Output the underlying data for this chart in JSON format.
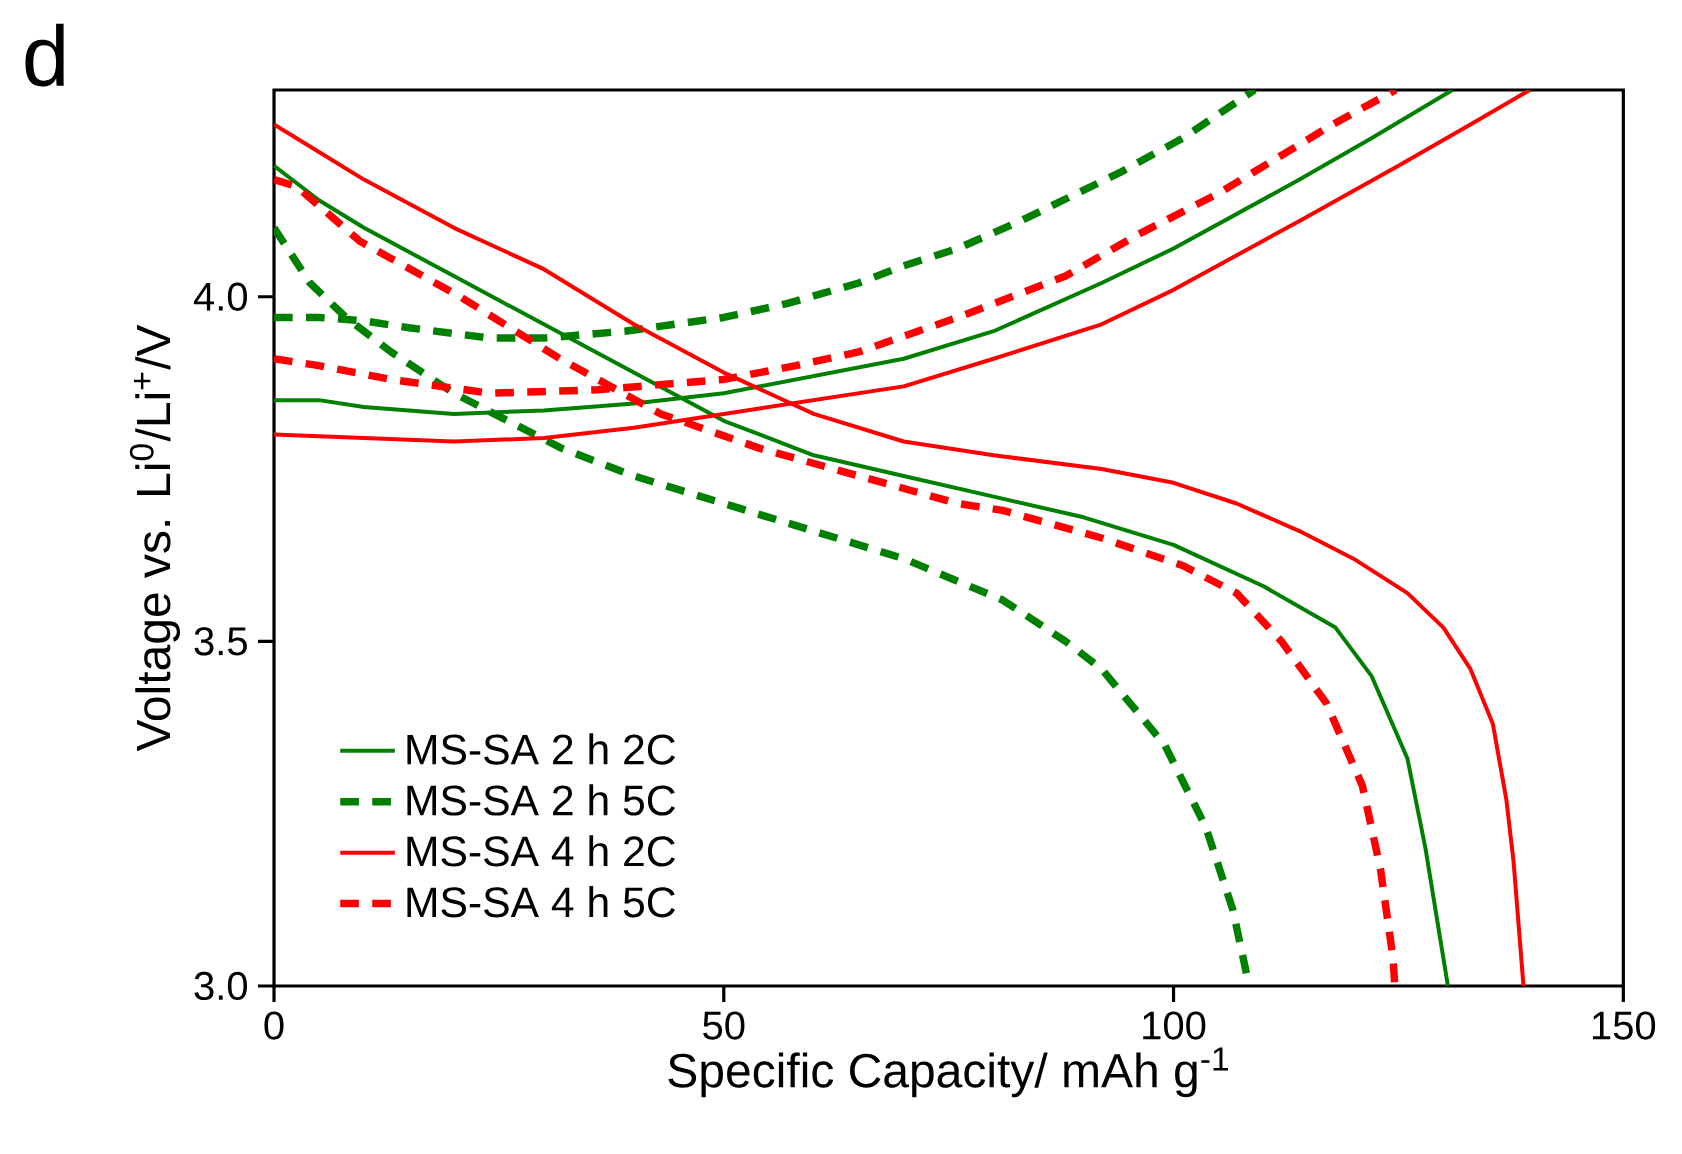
{
  "chart_data": {
    "type": "line",
    "title": "d",
    "xlabel": "Specific Capacity/ mAh g$^{-1}$",
    "ylabel": "Voltage vs. Li$^{0}$/Li$^{+}$/V",
    "xlim": [
      0,
      150
    ],
    "ylim": [
      3.0,
      4.3
    ],
    "xticks": [
      0,
      50,
      100,
      150
    ],
    "yticks": [
      {
        "value": 3.0,
        "label": "3.0"
      },
      {
        "value": 3.5,
        "label": "3.5"
      },
      {
        "value": 4.0,
        "label": "4.0"
      }
    ],
    "legend": "bottom left",
    "marker": "none",
    "grid": false,
    "series": [
      {
        "name": "MS-SA 2 h 2C",
        "color": "#008000",
        "line_style": "solid",
        "x": [
          0,
          5,
          10,
          20,
          30,
          40,
          50,
          60,
          70,
          80,
          90,
          100,
          110,
          118,
          122,
          126,
          128,
          130.5
        ],
        "values": [
          4.19,
          4.14,
          4.1,
          4.03,
          3.96,
          3.89,
          3.82,
          3.77,
          3.74,
          3.71,
          3.68,
          3.64,
          3.58,
          3.52,
          3.45,
          3.33,
          3.2,
          3.0
        ]
      },
      {
        "color": "#008000",
        "line_style": "solid",
        "x": [
          0,
          5,
          10,
          20,
          30,
          40,
          50,
          60,
          70,
          80,
          92,
          100,
          114,
          122,
          131
        ],
        "values": [
          3.85,
          3.85,
          3.84,
          3.83,
          3.835,
          3.845,
          3.86,
          3.885,
          3.91,
          3.95,
          4.02,
          4.07,
          4.17,
          4.23,
          4.3
        ]
      },
      {
        "name": "MS-SA 2 h 5C",
        "color": "#008000",
        "line_style": "dashed",
        "x": [
          0,
          2,
          4,
          8,
          13,
          20,
          32,
          40,
          50,
          60,
          70,
          81,
          88,
          92,
          99,
          103.6,
          106.6,
          108.4
        ],
        "values": [
          4.1,
          4.06,
          4.02,
          3.97,
          3.92,
          3.86,
          3.78,
          3.74,
          3.7,
          3.66,
          3.62,
          3.56,
          3.5,
          3.46,
          3.35,
          3.23,
          3.11,
          3.0
        ]
      },
      {
        "color": "#008000",
        "line_style": "dashed",
        "x": [
          0,
          5,
          10,
          15,
          24,
          30,
          39,
          50,
          57,
          65,
          70,
          76,
          83,
          94,
          101,
          109
        ],
        "values": [
          3.97,
          3.97,
          3.965,
          3.955,
          3.94,
          3.94,
          3.95,
          3.97,
          3.99,
          4.02,
          4.045,
          4.07,
          4.11,
          4.18,
          4.23,
          4.3
        ]
      },
      {
        "name": "MS-SA 4 h 2C",
        "color": "#ff0000",
        "line_style": "solid",
        "x": [
          0,
          5,
          10,
          20,
          30,
          40,
          50,
          60,
          70,
          80,
          92,
          100,
          107,
          114,
          120,
          126,
          130,
          133,
          135.5,
          137,
          137.8,
          138.9
        ],
        "values": [
          4.25,
          4.21,
          4.17,
          4.1,
          4.04,
          3.96,
          3.89,
          3.83,
          3.79,
          3.77,
          3.75,
          3.73,
          3.7,
          3.66,
          3.62,
          3.57,
          3.52,
          3.46,
          3.38,
          3.27,
          3.18,
          3.0
        ]
      },
      {
        "color": "#ff0000",
        "line_style": "solid",
        "x": [
          0,
          10,
          20,
          30,
          40,
          50,
          60,
          70,
          80,
          92,
          100,
          114,
          125,
          133,
          139.6
        ],
        "values": [
          3.8,
          3.795,
          3.79,
          3.795,
          3.81,
          3.83,
          3.85,
          3.87,
          3.91,
          3.96,
          4.01,
          4.11,
          4.19,
          4.25,
          4.3
        ]
      },
      {
        "name": "MS-SA 4 h 5C",
        "color": "#ff0000",
        "line_style": "dashed",
        "x": [
          0,
          2.5,
          9.6,
          20.7,
          31.8,
          43,
          54,
          65,
          76,
          81,
          92,
          101,
          107,
          112,
          117,
          121,
          123,
          124.4,
          124.6
        ],
        "values": [
          4.17,
          4.16,
          4.08,
          4.0,
          3.91,
          3.83,
          3.78,
          3.74,
          3.7,
          3.69,
          3.65,
          3.61,
          3.57,
          3.5,
          3.41,
          3.29,
          3.17,
          3.04,
          3.0
        ]
      },
      {
        "color": "#ff0000",
        "line_style": "dashed",
        "x": [
          0,
          5,
          13,
          24,
          36,
          50,
          58,
          65,
          76,
          88,
          96,
          105,
          117.7,
          124.7
        ],
        "values": [
          3.91,
          3.9,
          3.88,
          3.86,
          3.865,
          3.88,
          3.9,
          3.92,
          3.97,
          4.03,
          4.09,
          4.15,
          4.25,
          4.3
        ]
      }
    ]
  }
}
